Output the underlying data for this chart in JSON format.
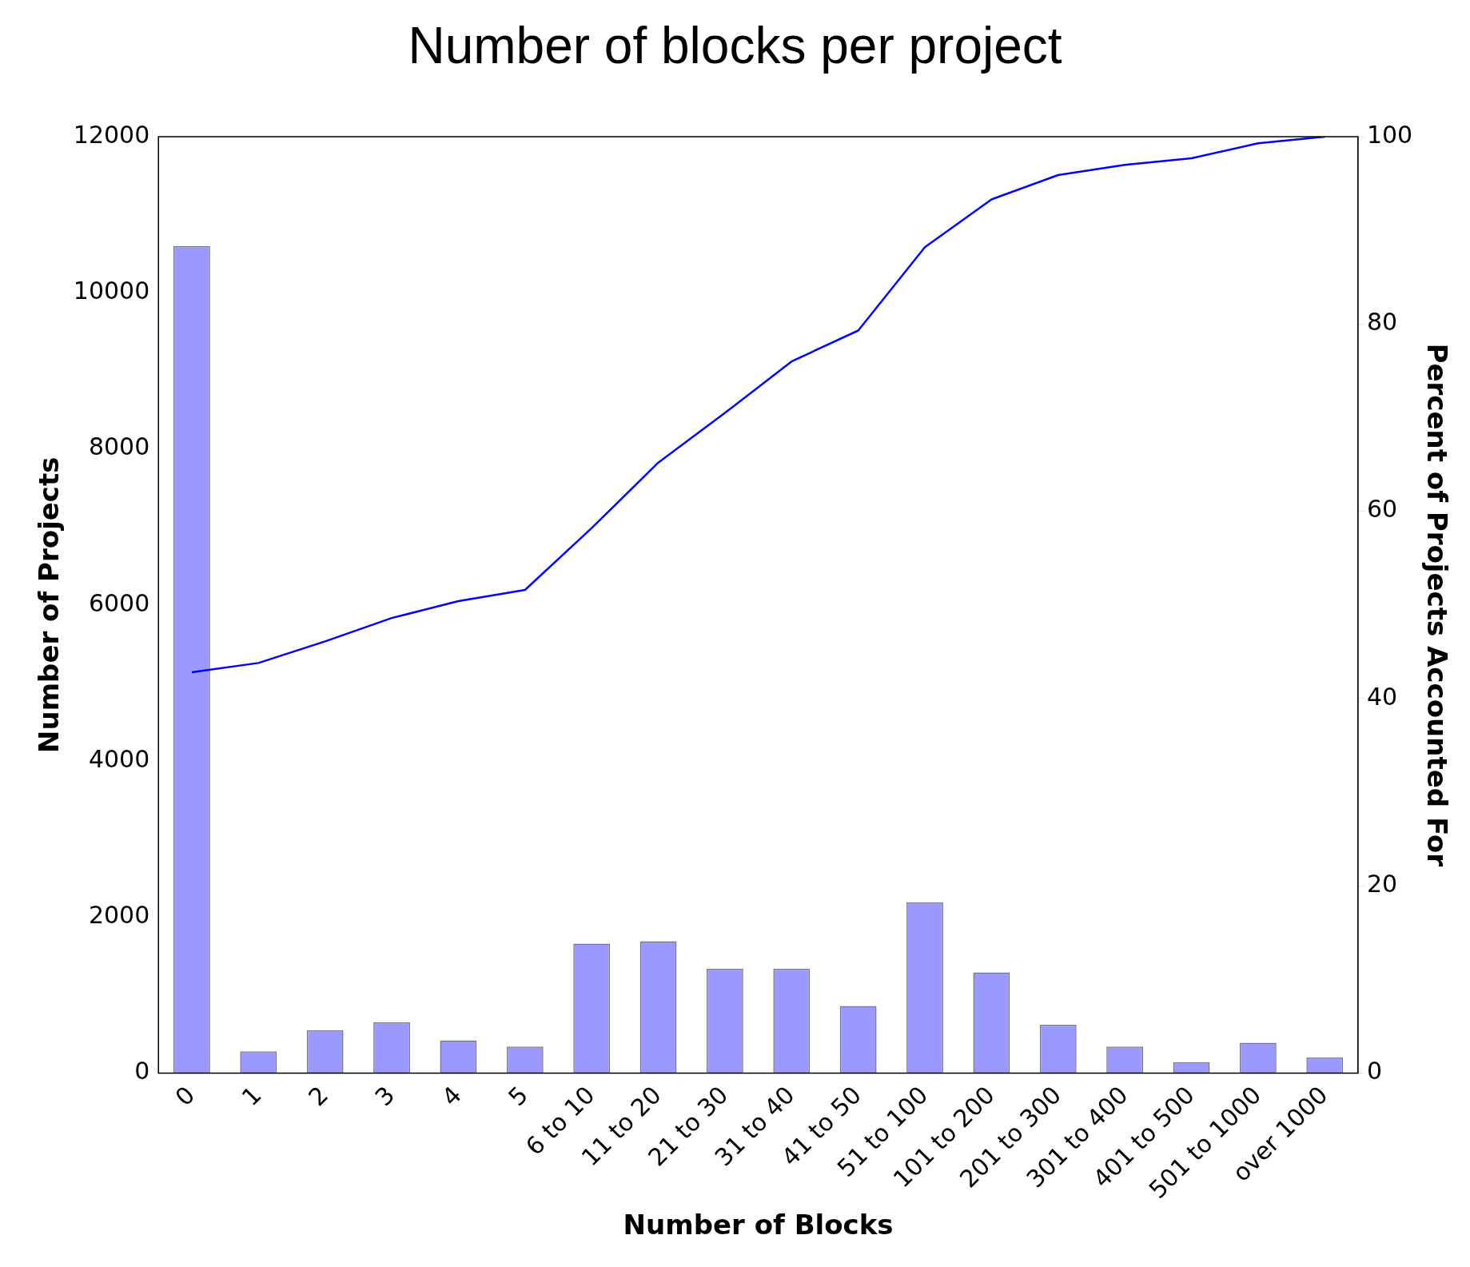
{
  "chart_data": {
    "type": "bar",
    "title": "Number of blocks per project",
    "xlabel": "Number of Blocks",
    "ylabel": "Number of Projects",
    "y2label": "Percent of Projects Accounted For",
    "categories": [
      "0",
      "1",
      "2",
      "3",
      "4",
      "5",
      "6 to 10",
      "11 to 20",
      "21 to 30",
      "31 to 40",
      "41 to 50",
      "51 to 100",
      "101 to 200",
      "201 to 300",
      "301 to 400",
      "401 to 500",
      "501 to 1000",
      "over 1000"
    ],
    "series": [
      {
        "color": "#9999ff",
        "values": [
          10600,
          280,
          550,
          650,
          420,
          340,
          1660,
          1690,
          1340,
          1340,
          860,
          2190,
          1290,
          620,
          340,
          140,
          390,
          200
        ]
      },
      {
        "type": "line",
        "axis": "y2",
        "color": "#0000ff",
        "values": [
          42.8,
          43.8,
          46.1,
          48.6,
          50.4,
          51.6,
          58.2,
          65.2,
          70.5,
          76.0,
          79.3,
          88.2,
          93.3,
          95.9,
          97.0,
          97.7,
          99.3,
          100
        ]
      }
    ],
    "ylim": [
      0,
      12000
    ],
    "yticks": [
      0,
      2000,
      4000,
      6000,
      8000,
      10000,
      12000
    ],
    "y2lim": [
      0,
      100
    ],
    "y2ticks": [
      0,
      20,
      40,
      60,
      80,
      100
    ],
    "grid": false,
    "legend": false,
    "marker": "none",
    "line_style": "solid"
  }
}
